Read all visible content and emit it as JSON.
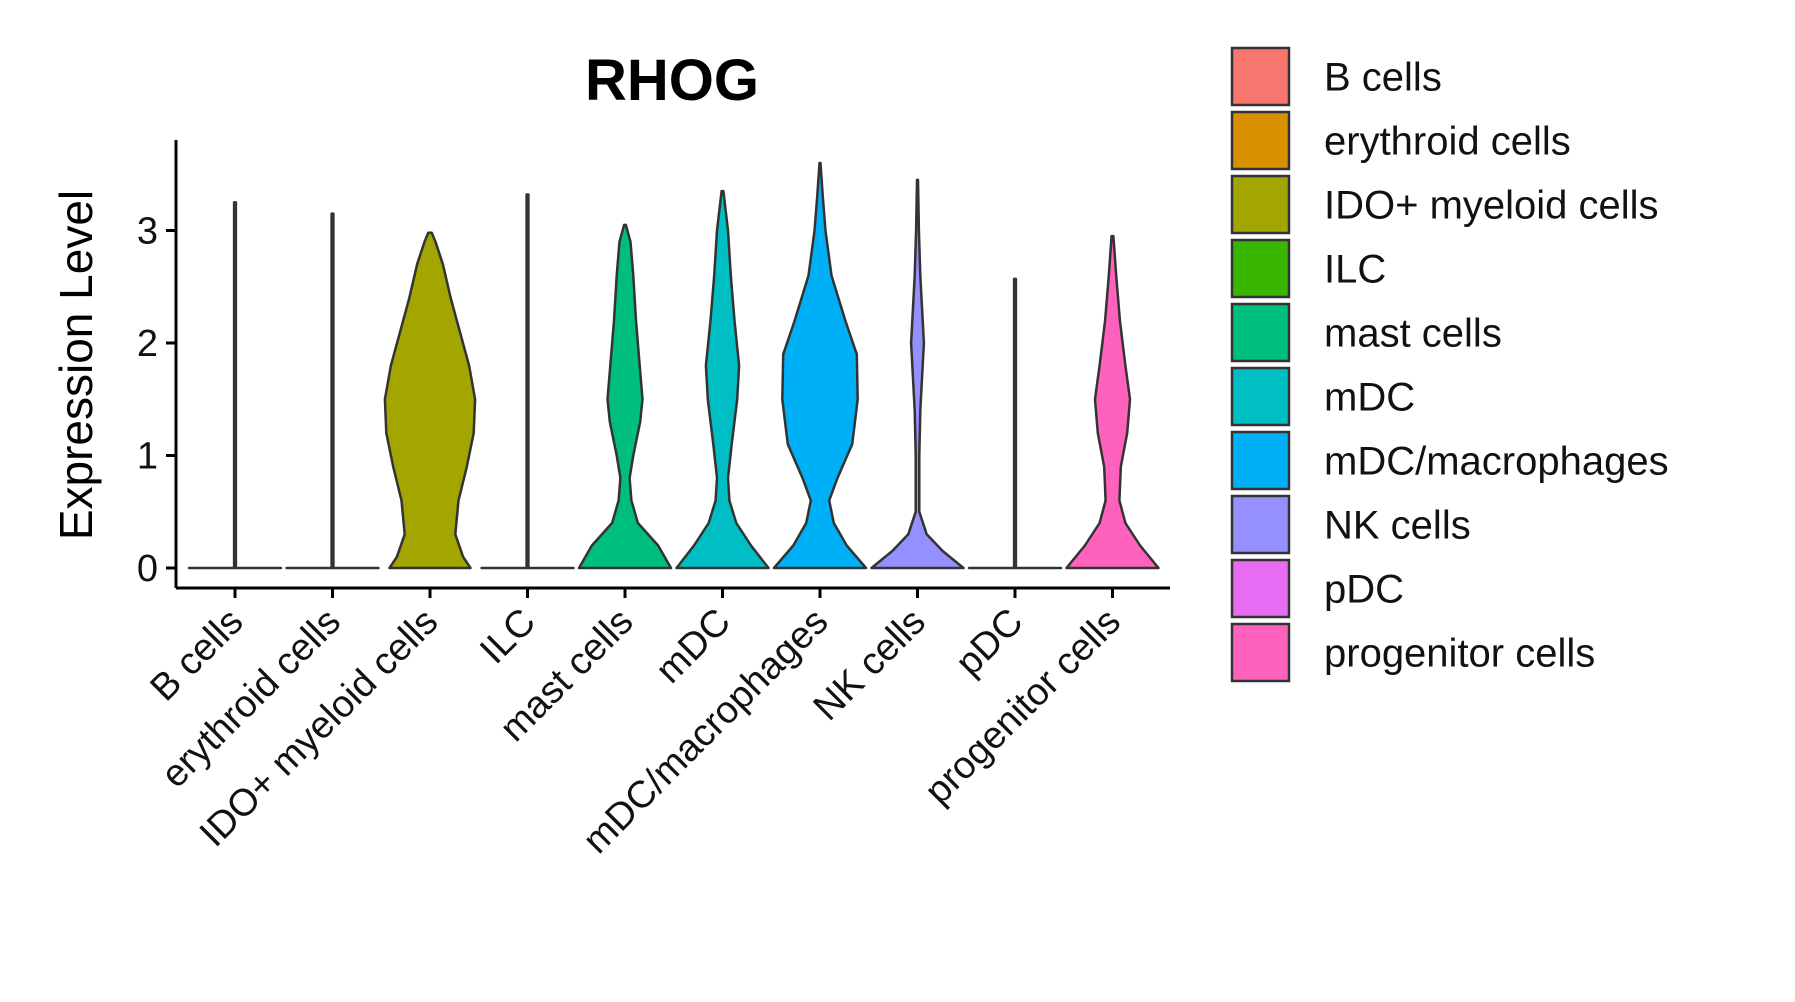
{
  "chart_data": {
    "type": "violin",
    "title": "RHOG",
    "ylabel": "Expression Level",
    "xlabel": "",
    "ylim": [
      0,
      3.8
    ],
    "yticks": [
      0,
      1,
      2,
      3
    ],
    "grid": false,
    "legend_position": "right",
    "categories": [
      "B cells",
      "erythroid cells",
      "IDO+ myeloid cells",
      "ILC",
      "mast cells",
      "mDC",
      "mDC/macrophages",
      "NK cells",
      "pDC",
      "progenitor cells"
    ],
    "colors": [
      "#F8766D",
      "#D89000",
      "#A3A500",
      "#39B600",
      "#00BF7D",
      "#00BFC4",
      "#00B0F6",
      "#9590FF",
      "#E76BF3",
      "#FF62BC"
    ],
    "max_values": [
      3.25,
      3.15,
      2.98,
      3.32,
      3.05,
      3.35,
      3.6,
      3.45,
      2.57,
      2.95
    ],
    "density_profiles": [
      [
        [
          0,
          1
        ],
        [
          0.001,
          0.02
        ],
        [
          3.25,
          0.02
        ]
      ],
      [
        [
          0,
          1
        ],
        [
          0.001,
          0.02
        ],
        [
          3.15,
          0.02
        ]
      ],
      [
        [
          0,
          0.88
        ],
        [
          0.1,
          0.72
        ],
        [
          0.3,
          0.55
        ],
        [
          0.6,
          0.62
        ],
        [
          0.9,
          0.8
        ],
        [
          1.2,
          0.95
        ],
        [
          1.5,
          0.98
        ],
        [
          1.8,
          0.85
        ],
        [
          2.1,
          0.65
        ],
        [
          2.4,
          0.45
        ],
        [
          2.7,
          0.28
        ],
        [
          2.9,
          0.12
        ],
        [
          2.98,
          0.04
        ]
      ],
      [
        [
          0,
          1
        ],
        [
          0.001,
          0.02
        ],
        [
          3.32,
          0.02
        ]
      ],
      [
        [
          0,
          1
        ],
        [
          0.2,
          0.72
        ],
        [
          0.4,
          0.28
        ],
        [
          0.6,
          0.14
        ],
        [
          0.8,
          0.1
        ],
        [
          1.0,
          0.18
        ],
        [
          1.3,
          0.33
        ],
        [
          1.5,
          0.38
        ],
        [
          1.8,
          0.32
        ],
        [
          2.2,
          0.24
        ],
        [
          2.6,
          0.18
        ],
        [
          2.9,
          0.12
        ],
        [
          3.05,
          0.02
        ]
      ],
      [
        [
          0,
          1
        ],
        [
          0.2,
          0.62
        ],
        [
          0.4,
          0.3
        ],
        [
          0.6,
          0.15
        ],
        [
          0.8,
          0.12
        ],
        [
          1.1,
          0.2
        ],
        [
          1.5,
          0.32
        ],
        [
          1.8,
          0.36
        ],
        [
          2.2,
          0.26
        ],
        [
          2.6,
          0.18
        ],
        [
          3.0,
          0.12
        ],
        [
          3.35,
          0.02
        ]
      ],
      [
        [
          0,
          1
        ],
        [
          0.2,
          0.58
        ],
        [
          0.4,
          0.3
        ],
        [
          0.6,
          0.2
        ],
        [
          0.8,
          0.38
        ],
        [
          1.1,
          0.7
        ],
        [
          1.5,
          0.82
        ],
        [
          1.9,
          0.8
        ],
        [
          2.2,
          0.55
        ],
        [
          2.6,
          0.25
        ],
        [
          3.0,
          0.12
        ],
        [
          3.3,
          0.06
        ],
        [
          3.6,
          0.01
        ]
      ],
      [
        [
          0,
          1
        ],
        [
          0.15,
          0.55
        ],
        [
          0.3,
          0.2
        ],
        [
          0.5,
          0.04
        ],
        [
          1.0,
          0.04
        ],
        [
          1.4,
          0.06
        ],
        [
          1.7,
          0.1
        ],
        [
          2.0,
          0.14
        ],
        [
          2.3,
          0.1
        ],
        [
          2.6,
          0.06
        ],
        [
          3.0,
          0.03
        ],
        [
          3.45,
          0.01
        ]
      ],
      [
        [
          0,
          1
        ],
        [
          0.001,
          0.02
        ],
        [
          2.57,
          0.02
        ]
      ],
      [
        [
          0,
          1
        ],
        [
          0.2,
          0.6
        ],
        [
          0.4,
          0.28
        ],
        [
          0.6,
          0.15
        ],
        [
          0.9,
          0.18
        ],
        [
          1.2,
          0.32
        ],
        [
          1.5,
          0.38
        ],
        [
          1.8,
          0.28
        ],
        [
          2.2,
          0.16
        ],
        [
          2.6,
          0.08
        ],
        [
          2.95,
          0.02
        ]
      ]
    ]
  }
}
